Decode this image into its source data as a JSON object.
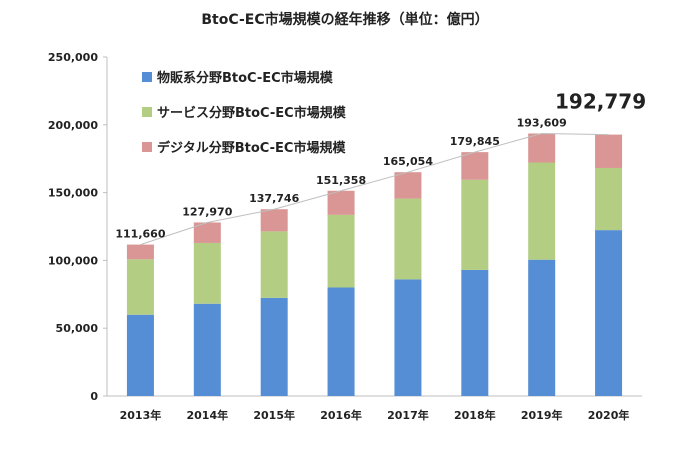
{
  "chart_data": {
    "type": "bar",
    "stacked": true,
    "title": "BtoC-EC市場規模の経年推移（単位：億円）",
    "categories": [
      "2013年",
      "2014年",
      "2015年",
      "2016年",
      "2017年",
      "2018年",
      "2019年",
      "2020年"
    ],
    "series": [
      {
        "name": "物販系分野BtoC-EC市場規模",
        "color": "#558ed5",
        "values": [
          59931,
          68043,
          72398,
          80043,
          86008,
          92992,
          100515,
          122333
        ]
      },
      {
        "name": "サービス分野BtoC-EC市場規模",
        "color": "#b3cd83",
        "values": [
          40901,
          44816,
          49014,
          53532,
          59568,
          66471,
          71672,
          45832
        ]
      },
      {
        "name": "デジタル分野BtoC-EC市場規模",
        "color": "#d99694",
        "values": [
          10828,
          15111,
          16334,
          17782,
          19478,
          20382,
          21422,
          24614
        ]
      }
    ],
    "totals": [
      "111,660",
      "127,970",
      "137,746",
      "151,358",
      "165,054",
      "179,845",
      "193,609",
      "192,779"
    ],
    "highlight_total_index": 7,
    "ylim": [
      0,
      250000
    ],
    "yticks": [
      0,
      50000,
      100000,
      150000,
      200000,
      250000
    ],
    "ytick_labels": [
      "0",
      "50,000",
      "100,000",
      "150,000",
      "200,000",
      "250,000"
    ],
    "legend_position": "top-left",
    "trend_line": true,
    "trend_line_color": "#bfbfbf",
    "axis_color": "#bfbfbf"
  }
}
